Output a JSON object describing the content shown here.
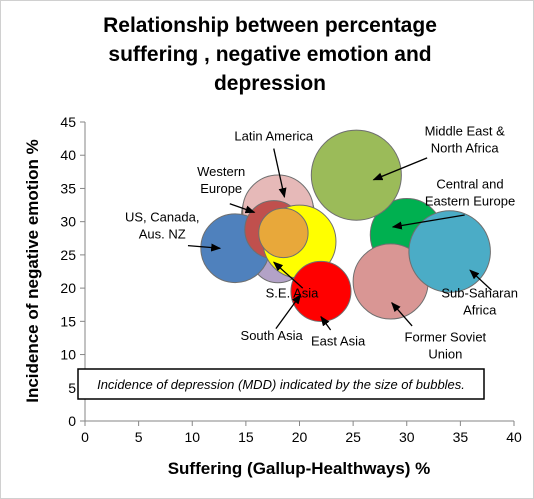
{
  "chart_data": {
    "type": "scatter",
    "subtype": "bubble",
    "title_lines": [
      "Relationship between percentage",
      "suffering , negative emotion and",
      "depression"
    ],
    "xlabel": "Suffering (Gallup-Healthways) %",
    "ylabel": "Incidence of negative emotion %",
    "xlim": [
      0,
      40
    ],
    "ylim": [
      0,
      45
    ],
    "xticks": [
      0,
      5,
      10,
      15,
      20,
      25,
      30,
      35,
      40
    ],
    "yticks": [
      0,
      5,
      10,
      15,
      20,
      25,
      30,
      35,
      40,
      45
    ],
    "grid": false,
    "annotation": "Incidence of depression (MDD) indicated by the size of bubbles.",
    "series": [
      {
        "label_lines": [
          "S.E. Asia"
        ],
        "x": 18,
        "y": 25,
        "size": 2.6,
        "color": "#b3a2c7",
        "label_pos": [
          19.3,
          18.6
        ],
        "arrow_from": [
          20.3,
          20.0
        ],
        "arrow_to": [
          17.6,
          23.9
        ]
      },
      {
        "label_lines": [
          "Central and",
          "Eastern Europe"
        ],
        "x": 30,
        "y": 28,
        "size": 3.4,
        "color": "#00b050",
        "label_pos": [
          35.9,
          35.0
        ],
        "arrow_from": [
          35.4,
          31.0
        ],
        "arrow_to": [
          28.7,
          29.2
        ]
      },
      {
        "label_lines": [
          "Former Soviet",
          "Union"
        ],
        "x": 28.5,
        "y": 21,
        "size": 3.5,
        "color": "#d99694",
        "label_pos": [
          33.6,
          12.0
        ],
        "arrow_from": [
          30.5,
          14.3
        ],
        "arrow_to": [
          28.6,
          17.8
        ]
      },
      {
        "label_lines": [
          "Sub-Saharan",
          "Africa"
        ],
        "x": 34,
        "y": 25.5,
        "size": 3.8,
        "color": "#4bacc6",
        "label_pos": [
          36.8,
          18.6
        ],
        "arrow_from": [
          37.9,
          19.7
        ],
        "arrow_to": [
          35.9,
          22.7
        ]
      },
      {
        "label_lines": [
          "Middle East &",
          "North Africa"
        ],
        "x": 25.3,
        "y": 37,
        "size": 4.2,
        "color": "#9bbb59",
        "label_pos": [
          35.4,
          43.0
        ],
        "arrow_from": [
          31.9,
          39.6
        ],
        "arrow_to": [
          26.9,
          36.3
        ]
      },
      {
        "label_lines": [
          "Western",
          "Europe"
        ],
        "x": 18,
        "y": 31,
        "size": 3.4,
        "color": "#e46c0a",
        "label_pos": [
          12.7,
          36.9
        ],
        "arrow_from": [
          13.5,
          32.7
        ],
        "arrow_to": [
          15.8,
          31.4
        ]
      },
      {
        "label_lines": [
          "Latin America"
        ],
        "x": 18,
        "y": 31.7,
        "size": 3.3,
        "color": "#e6b9b8",
        "label_pos": [
          17.6,
          42.2
        ],
        "arrow_from": [
          17.6,
          41.0
        ],
        "arrow_to": [
          18.6,
          33.7
        ]
      },
      {
        "label_lines": [
          "US, Canada,",
          "Aus. NZ"
        ],
        "x": 14,
        "y": 26,
        "size": 3.2,
        "color": "#4f81bd",
        "label_pos": [
          7.2,
          30.0
        ],
        "arrow_from": [
          9.6,
          26.4
        ],
        "arrow_to": [
          12.6,
          26.0
        ]
      },
      {
        "label_lines": [],
        "x": 17.6,
        "y": 28.8,
        "size": 2.7,
        "color": "#c0504d",
        "label_pos": null,
        "arrow_from": null,
        "arrow_to": null
      },
      {
        "label_lines": [
          "South Asia"
        ],
        "x": 20,
        "y": 27,
        "size": 3.4,
        "color": "#ffff00",
        "label_pos": [
          17.4,
          12.2
        ],
        "arrow_from": [
          17.8,
          13.9
        ],
        "arrow_to": [
          20.1,
          19.0
        ]
      },
      {
        "label_lines": [],
        "x": 18.5,
        "y": 28.3,
        "size": 2.3,
        "color": "#e8a83a",
        "label_pos": null,
        "arrow_from": null,
        "arrow_to": null
      },
      {
        "label_lines": [
          "East Asia"
        ],
        "x": 22,
        "y": 19.5,
        "size": 2.8,
        "color": "#ff0000",
        "label_pos": [
          23.6,
          11.4
        ],
        "arrow_from": [
          22.9,
          13.7
        ],
        "arrow_to": [
          22.0,
          15.7
        ]
      }
    ]
  }
}
